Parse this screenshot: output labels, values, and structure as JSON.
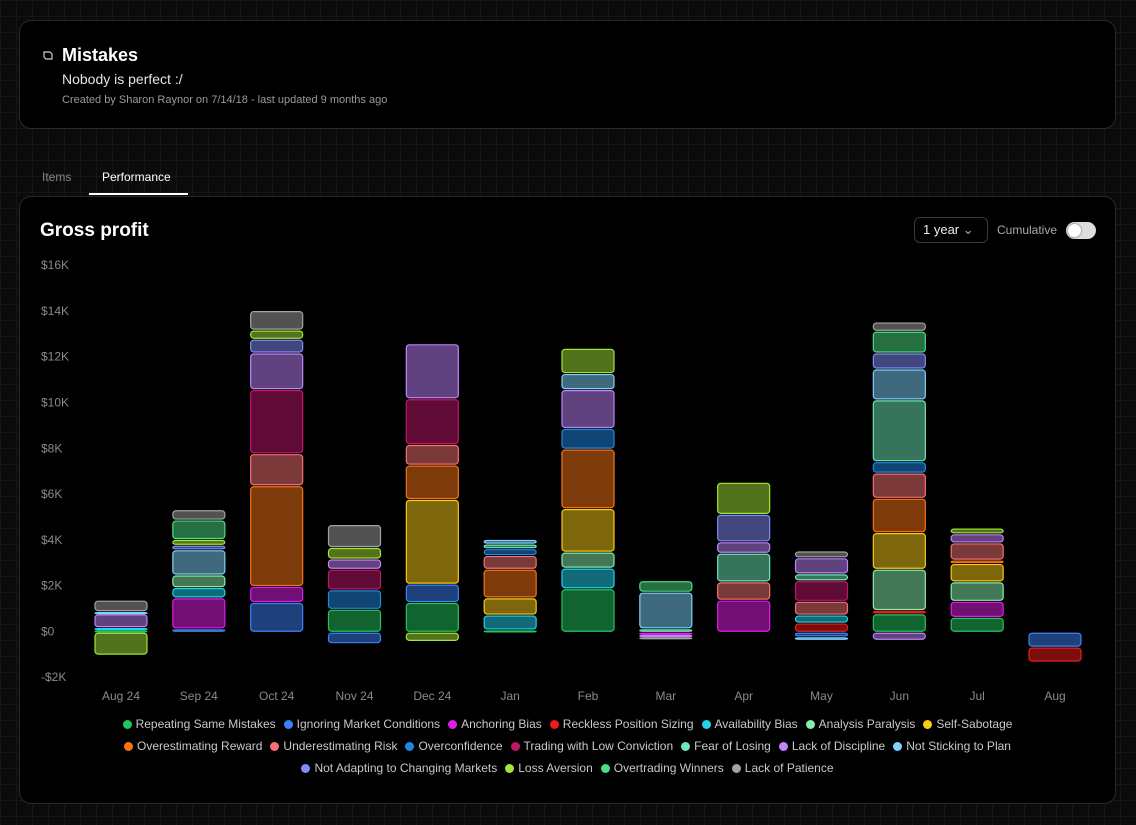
{
  "header": {
    "title": "Mistakes",
    "subtitle": "Nobody is perfect :/",
    "meta": "Created by Sharon Raynor on 7/14/18 - last updated 9 months ago"
  },
  "tabs": [
    "Items",
    "Performance"
  ],
  "controls": {
    "range": "1 year",
    "cumulative": "Cumulative"
  },
  "chart_data": {
    "type": "stacked_bar",
    "title": "Gross profit",
    "categories": [
      "Aug 24",
      "Sep 24",
      "Oct 24",
      "Nov 24",
      "Dec 24",
      "Jan",
      "Feb",
      "Mar",
      "Apr",
      "May",
      "Jun",
      "Jul",
      "Aug"
    ],
    "ylim": [
      -2000,
      16000
    ],
    "yticks": [
      {
        "value": -2000,
        "label": "-$2K"
      },
      {
        "value": 0,
        "label": "$0"
      },
      {
        "value": 2000,
        "label": "$2K"
      },
      {
        "value": 4000,
        "label": "$4K"
      },
      {
        "value": 6000,
        "label": "$6K"
      },
      {
        "value": 8000,
        "label": "$8K"
      },
      {
        "value": 10000,
        "label": "$10K"
      },
      {
        "value": 12000,
        "label": "$12K"
      },
      {
        "value": 14000,
        "label": "$14K"
      },
      {
        "value": 16000,
        "label": "$16K"
      }
    ],
    "grid": false,
    "series": [
      {
        "name": "Repeating Same Mistakes",
        "color": "#22c55e",
        "values": [
          100,
          null,
          null,
          1000,
          1300,
          100,
          1900,
          null,
          null,
          null,
          800,
          650,
          null
        ]
      },
      {
        "name": "Ignoring Market Conditions",
        "color": "#3b82f6",
        "values": [
          null,
          150,
          1300,
          -500,
          800,
          null,
          null,
          null,
          null,
          -200,
          null,
          null,
          -650
        ]
      },
      {
        "name": "Anchoring Bias",
        "color": "#e11dea",
        "values": [
          null,
          1350,
          700,
          null,
          null,
          null,
          null,
          -100,
          1400,
          null,
          null,
          700,
          null
        ]
      },
      {
        "name": "Reckless Position Sizing",
        "color": "#ef1c1c",
        "values": [
          null,
          null,
          null,
          null,
          null,
          null,
          null,
          null,
          null,
          400,
          150,
          null,
          -650
        ]
      },
      {
        "name": "Availability Bias",
        "color": "#22d3ee",
        "values": [
          100,
          450,
          null,
          null,
          null,
          650,
          900,
          null,
          null,
          350,
          null,
          null,
          null
        ]
      },
      {
        "name": "Analysis Paralysis",
        "color": "#86efac",
        "values": [
          null,
          550,
          null,
          null,
          null,
          null,
          700,
          null,
          null,
          null,
          1800,
          850,
          null
        ]
      },
      {
        "name": "Self-Sabotage",
        "color": "#facc15",
        "values": [
          null,
          null,
          null,
          null,
          3700,
          750,
          1900,
          null,
          null,
          null,
          1600,
          800,
          null
        ]
      },
      {
        "name": "Overestimating Reward",
        "color": "#f97316",
        "values": [
          null,
          null,
          4400,
          null,
          1500,
          1250,
          2600,
          null,
          null,
          null,
          1500,
          150,
          null
        ]
      },
      {
        "name": "Underestimating Risk",
        "color": "#f87171",
        "values": [
          null,
          null,
          1400,
          null,
          900,
          600,
          null,
          null,
          800,
          600,
          1100,
          750,
          null
        ]
      },
      {
        "name": "Overconfidence",
        "color": "#1e88e5",
        "values": [
          null,
          null,
          null,
          850,
          null,
          300,
          900,
          null,
          null,
          null,
          500,
          null,
          null
        ]
      },
      {
        "name": "Trading with Low Conviction",
        "color": "#c0166a",
        "values": [
          null,
          null,
          2800,
          900,
          2000,
          null,
          null,
          null,
          null,
          900,
          null,
          null,
          null
        ]
      },
      {
        "name": "Fear of Losing",
        "color": "#6ee7b7",
        "values": [
          null,
          null,
          null,
          null,
          null,
          200,
          null,
          150,
          1250,
          300,
          2700,
          null,
          null
        ]
      },
      {
        "name": "Lack of Discipline",
        "color": "#c084fc",
        "values": [
          600,
          null,
          1600,
          450,
          2400,
          null,
          1700,
          -100,
          500,
          700,
          -350,
          400,
          null
        ]
      },
      {
        "name": "Not Sticking to Plan",
        "color": "#7dd3fc",
        "values": [
          100,
          1100,
          null,
          null,
          null,
          200,
          700,
          1600,
          null,
          -150,
          1350,
          null,
          null
        ]
      },
      {
        "name": "Not Adapting to Changing Markets",
        "color": "#818cf8",
        "values": [
          null,
          200,
          600,
          null,
          null,
          null,
          null,
          null,
          1200,
          null,
          700,
          null,
          null
        ]
      },
      {
        "name": "Loss Aversion",
        "color": "#a3e635",
        "values": [
          -1000,
          250,
          400,
          500,
          -400,
          null,
          1100,
          null,
          1400,
          null,
          null,
          250,
          null
        ]
      },
      {
        "name": "Overtrading Winners",
        "color": "#4ade80",
        "values": [
          null,
          850,
          null,
          null,
          null,
          null,
          null,
          500,
          null,
          null,
          950,
          null,
          null
        ]
      },
      {
        "name": "Lack of Patience",
        "color": "#a3a3a3",
        "values": [
          500,
          450,
          850,
          1000,
          null,
          null,
          null,
          -100,
          null,
          300,
          400,
          null,
          null
        ]
      }
    ]
  }
}
